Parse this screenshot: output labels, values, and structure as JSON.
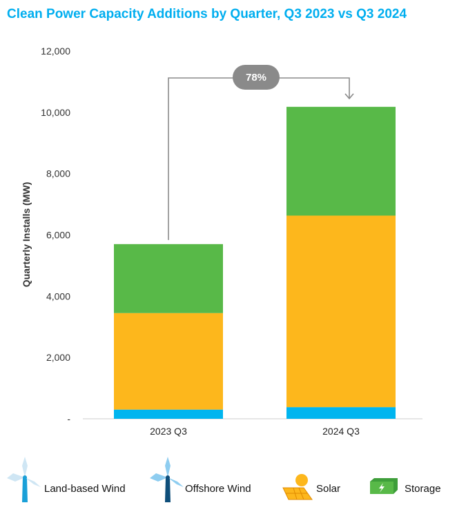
{
  "chart_data": {
    "type": "bar",
    "stacked": true,
    "title": "Clean Power Capacity Additions by Quarter, Q3 2023 vs Q3 2024",
    "xlabel": "",
    "ylabel": "Quarterly Installs (MW)",
    "ylim": [
      0,
      12000
    ],
    "yticks": [
      0,
      2000,
      4000,
      6000,
      8000,
      10000,
      12000
    ],
    "ytick_labels": [
      "-",
      "2,000",
      "4,000",
      "6,000",
      "8,000",
      "10,000",
      "12,000"
    ],
    "categories": [
      "2023 Q3",
      "2024 Q3"
    ],
    "series": [
      {
        "name": "Land-based Wind",
        "values": [
          300,
          380
        ],
        "color": "#00b5ef"
      },
      {
        "name": "Offshore Wind",
        "values": [
          0,
          0
        ],
        "color": "#0e5c8c"
      },
      {
        "name": "Solar",
        "values": [
          3150,
          6250
        ],
        "color": "#fdb71c"
      },
      {
        "name": "Storage",
        "values": [
          2250,
          3550
        ],
        "color": "#58b948"
      }
    ],
    "annotation": {
      "label": "78%",
      "from_category": "2023 Q3",
      "to_category": "2024 Q3"
    },
    "grid": false,
    "legend_position": "bottom"
  },
  "colors": {
    "title": "#00aeef",
    "badge": "#8a8a8a",
    "connector": "#8a8a8a"
  },
  "legend_icons": [
    "land-wind-turbine-icon",
    "offshore-wind-turbine-icon",
    "solar-panel-icon",
    "battery-icon"
  ]
}
